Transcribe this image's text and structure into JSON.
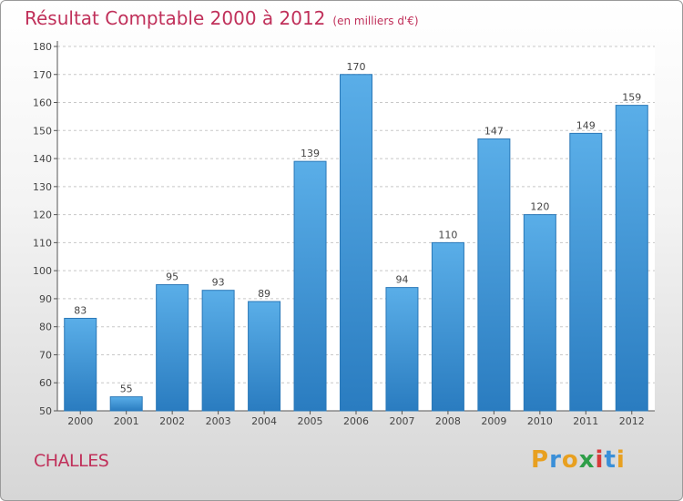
{
  "chart_data": {
    "type": "bar",
    "title": "Résultat Comptable 2000 à 2012",
    "subtitle": "(en milliers d'€)",
    "categories": [
      "2000",
      "2001",
      "2002",
      "2003",
      "2004",
      "2005",
      "2006",
      "2007",
      "2008",
      "2009",
      "2010",
      "2011",
      "2012"
    ],
    "values": [
      83,
      55,
      95,
      93,
      89,
      139,
      170,
      94,
      110,
      147,
      120,
      149,
      159
    ],
    "ylim": [
      50,
      180
    ],
    "yticks": [
      50,
      60,
      70,
      80,
      90,
      100,
      110,
      120,
      130,
      140,
      150,
      160,
      170,
      180
    ],
    "grid": true,
    "xlabel": "",
    "ylabel": ""
  },
  "location": "CHALLES",
  "brand": {
    "letters": [
      "P",
      "r",
      "o",
      "x",
      "i",
      "t",
      "i"
    ],
    "colors": [
      "#e8a020",
      "#3a8fd8",
      "#e8a020",
      "#2e9e48",
      "#d83a3a",
      "#3a8fd8",
      "#e8a020"
    ]
  },
  "colors": {
    "bar_top": "#5aaee8",
    "bar_bottom": "#2a7cc0",
    "title": "#c0305a"
  }
}
